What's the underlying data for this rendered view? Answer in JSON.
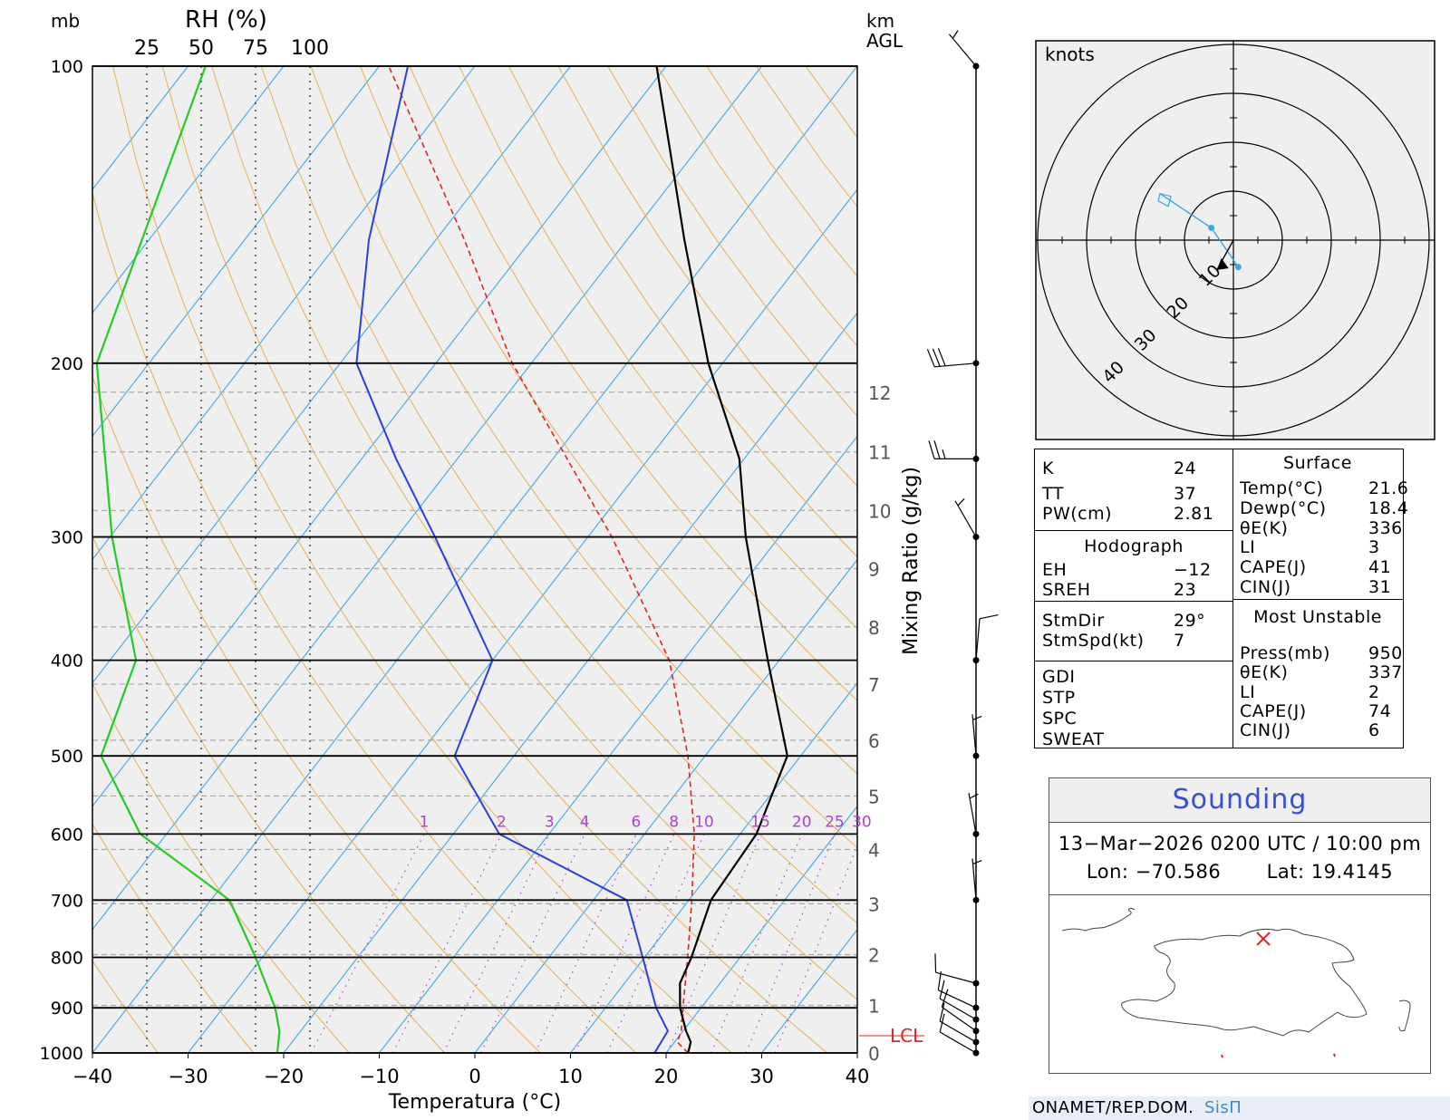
{
  "chart_data": {
    "type": "skew-t",
    "units": {
      "pressure_label": "mb",
      "rh_label": "RH (%)",
      "height_label_1": "km",
      "height_label_2": "AGL",
      "xlabel": "Temperatura (°C)",
      "mixing_label": "Mixing Ratio (g/kg)"
    },
    "pressure_ticks": [
      "100",
      "200",
      "300",
      "400",
      "500",
      "600",
      "700",
      "800",
      "900",
      "1000"
    ],
    "temperature_ticks": [
      "−40",
      "−30",
      "−20",
      "−10",
      "0",
      "10",
      "20",
      "30",
      "40"
    ],
    "rh_ticks": [
      "25",
      "50",
      "75",
      "100"
    ],
    "height_ticks": [
      "0",
      "1",
      "2",
      "3",
      "4",
      "5",
      "6",
      "7",
      "8",
      "9",
      "10",
      "11",
      "12"
    ],
    "mixing_ratio_ticks": [
      "1",
      "2",
      "3",
      "4",
      "6",
      "8",
      "10",
      "15",
      "20",
      "25",
      "30"
    ],
    "lcl_label": "LCL",
    "temperature_profile": [
      [
        1000,
        22.3
      ],
      [
        975,
        21.7
      ],
      [
        950,
        20.3
      ],
      [
        900,
        17.8
      ],
      [
        850,
        15.8
      ],
      [
        800,
        14.9
      ],
      [
        700,
        12.3
      ],
      [
        600,
        11.7
      ],
      [
        500,
        8.6
      ],
      [
        400,
        -1.2
      ],
      [
        300,
        -13.5
      ],
      [
        250,
        -20.5
      ],
      [
        200,
        -31.5
      ],
      [
        150,
        -44
      ],
      [
        100,
        -61
      ]
    ],
    "dewpoint_profile": [
      [
        1000,
        18.8
      ],
      [
        950,
        18.4
      ],
      [
        900,
        15.3
      ],
      [
        800,
        9.8
      ],
      [
        700,
        3.5
      ],
      [
        600,
        -15.2
      ],
      [
        500,
        -26.2
      ],
      [
        400,
        -30.0
      ],
      [
        300,
        -46.0
      ],
      [
        250,
        -56.4
      ],
      [
        200,
        -68.3
      ],
      [
        150,
        -77
      ],
      [
        100,
        -87
      ]
    ],
    "parcel_profile": [
      [
        1000,
        22.3
      ],
      [
        975,
        20.3
      ],
      [
        950,
        19.8
      ],
      [
        900,
        18.1
      ],
      [
        800,
        14.5
      ],
      [
        700,
        10.3
      ],
      [
        600,
        5.2
      ],
      [
        500,
        -1.8
      ],
      [
        400,
        -11.5
      ],
      [
        300,
        -27.5
      ],
      [
        200,
        -52
      ],
      [
        150,
        -67
      ],
      [
        100,
        -89
      ]
    ],
    "rh_profile": [
      [
        1000,
        85
      ],
      [
        950,
        86
      ],
      [
        900,
        84
      ],
      [
        800,
        75
      ],
      [
        700,
        63
      ],
      [
        600,
        22
      ],
      [
        500,
        4
      ],
      [
        400,
        20
      ],
      [
        300,
        9
      ],
      [
        200,
        2
      ],
      [
        100,
        52
      ]
    ],
    "wind_barbs": [
      {
        "p": 1000,
        "dir": 300,
        "kt": 10
      },
      {
        "p": 975,
        "dir": 300,
        "kt": 10
      },
      {
        "p": 950,
        "dir": 305,
        "kt": 10
      },
      {
        "p": 925,
        "dir": 300,
        "kt": 10
      },
      {
        "p": 900,
        "dir": 295,
        "kt": 10
      },
      {
        "p": 850,
        "dir": 285,
        "kt": 10
      },
      {
        "p": 700,
        "dir": 355,
        "kt": 5
      },
      {
        "p": 600,
        "dir": 350,
        "kt": 5
      },
      {
        "p": 500,
        "dir": 355,
        "kt": 5
      },
      {
        "p": 400,
        "dir": 5,
        "kt": 10
      },
      {
        "p": 300,
        "dir": 330,
        "kt": 5
      },
      {
        "p": 250,
        "dir": 270,
        "kt": 25
      },
      {
        "p": 200,
        "dir": 265,
        "kt": 30
      },
      {
        "p": 100,
        "dir": 320,
        "kt": 5
      }
    ],
    "hodograph": {
      "label": "knots",
      "ring_labels": [
        "10",
        "20",
        "30",
        "40"
      ],
      "points": [
        [
          1.0,
          -5.5
        ],
        [
          -4.5,
          2.5
        ],
        [
          -15,
          9.5
        ]
      ],
      "storm_motion": {
        "dir": 29,
        "kt": 7
      }
    }
  },
  "indices": {
    "k": {
      "label": "K",
      "value": "24"
    },
    "tt": {
      "label": "TT",
      "value": "37"
    },
    "pw": {
      "label": "PW(cm)",
      "value": "2.81"
    },
    "hodo_header": "Hodograph",
    "eh": {
      "label": "EH",
      "value": "−12"
    },
    "sreh": {
      "label": "SREH",
      "value": "23"
    },
    "stmdir": {
      "label": "StmDir",
      "value": "29°"
    },
    "stmspd": {
      "label": "StmSpd(kt)",
      "value": "7"
    },
    "gdi": "GDI",
    "stp": "STP",
    "spc": "SPC",
    "sweat": "SWEAT",
    "surface": {
      "header": "Surface",
      "temp": {
        "label": "Temp(°C)",
        "value": "21.6"
      },
      "dewp": {
        "label": "Dewp(°C)",
        "value": "18.4"
      },
      "thetae": {
        "label": "θE(K)",
        "value": "336"
      },
      "li": {
        "label": "LI",
        "value": "3"
      },
      "cape": {
        "label": "CAPE(J)",
        "value": "41"
      },
      "cin": {
        "label": "CIN(J)",
        "value": "31"
      }
    },
    "mu": {
      "header": "Most Unstable",
      "press": {
        "label": "Press(mb)",
        "value": "950"
      },
      "thetae": {
        "label": "θE(K)",
        "value": "337"
      },
      "li": {
        "label": "LI",
        "value": "2"
      },
      "cape": {
        "label": "CAPE(J)",
        "value": "74"
      },
      "cin": {
        "label": "CIN(J)",
        "value": "6"
      }
    }
  },
  "sounding": {
    "title": "Sounding",
    "datetime": "13−Mar−2026 0200 UTC / 10:00 pm",
    "lon_label": "Lon:",
    "lon": "−70.586",
    "lat_label": "Lat:",
    "lat": "19.4145"
  },
  "footer": {
    "org": "ONAMET/REP.DOM.",
    "brand": "SisΠ"
  },
  "colors": {
    "temperature": "#000000",
    "dewpoint": "#2b3fe0",
    "parcel": "#e82020",
    "rh": "#22cc22",
    "isotherm": "#3aa8e8",
    "dry_adiabat": "#e8b050",
    "mixing_ratio": "#b040d0",
    "plot_bg": "#efefef"
  }
}
